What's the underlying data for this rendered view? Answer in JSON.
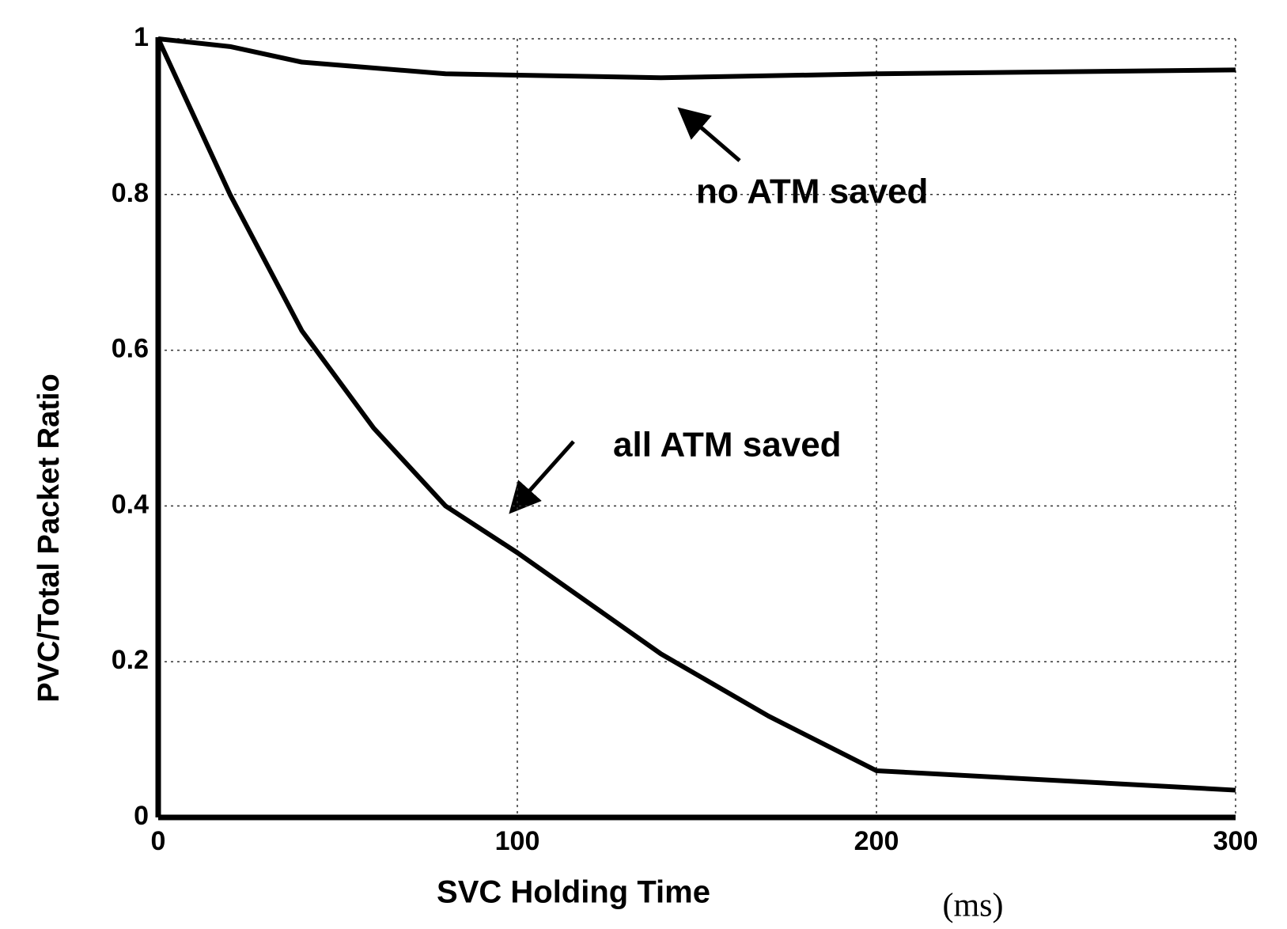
{
  "chart_data": {
    "type": "line",
    "x_label": "SVC Holding Time",
    "x_unit": "(ms)",
    "y_label": "PVC/Total Packet Ratio",
    "xlim": [
      0,
      300
    ],
    "xticks": [
      0,
      100,
      200,
      300
    ],
    "ylim": [
      0,
      1
    ],
    "yticks": [
      0,
      0.2,
      0.4,
      0.6,
      0.8,
      1
    ],
    "grid": true,
    "series": [
      {
        "name": "no ATM saved",
        "color": "#000000",
        "x": [
          0,
          20,
          40,
          80,
          140,
          200,
          300
        ],
        "values": [
          1,
          0.99,
          0.97,
          0.955,
          0.95,
          0.955,
          0.96
        ]
      },
      {
        "name": "all ATM saved",
        "color": "#000000",
        "x": [
          0,
          20,
          40,
          60,
          80,
          100,
          140,
          170,
          200,
          300
        ],
        "values": [
          1,
          0.8,
          0.625,
          0.5,
          0.4,
          0.34,
          0.21,
          0.13,
          0.06,
          0.035
        ]
      }
    ]
  }
}
